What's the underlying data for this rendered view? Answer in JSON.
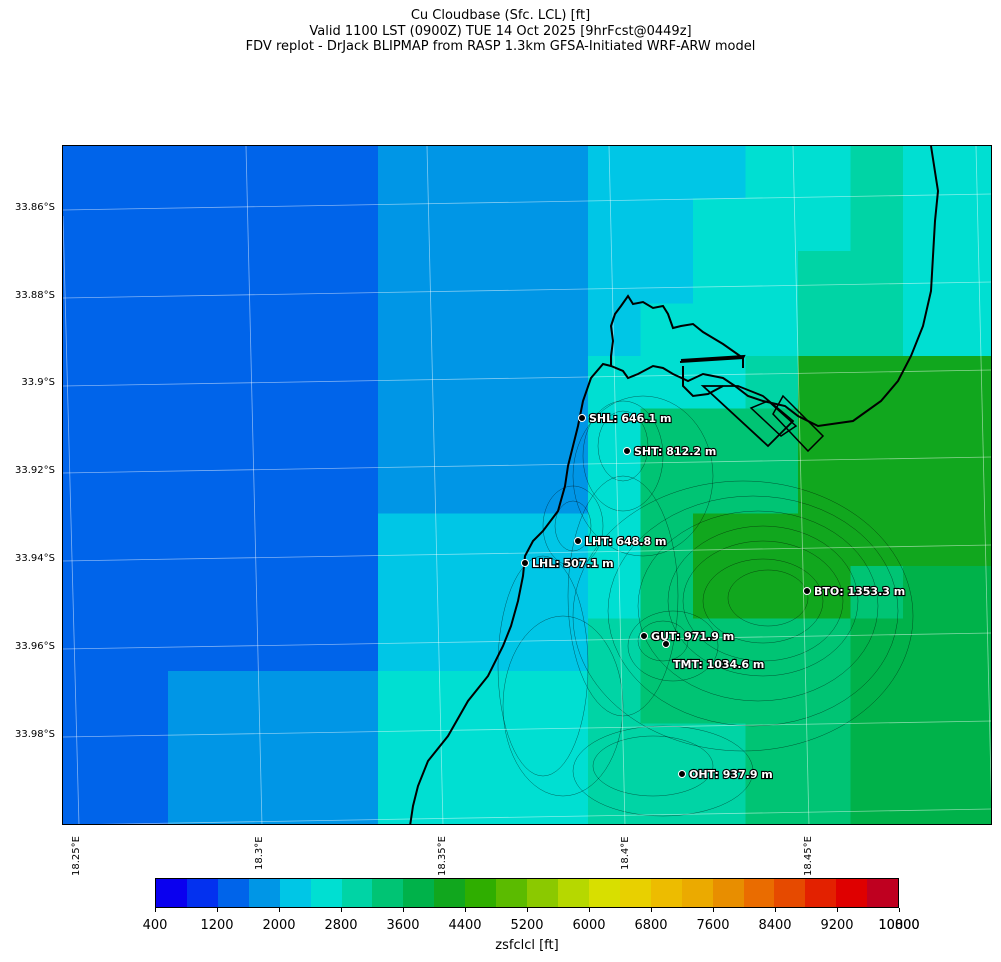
{
  "title_lines": [
    "Cu Cloudbase (Sfc. LCL) [ft]",
    "Valid 1100 LST (0900Z) TUE 14 Oct 2025 [9hrFcst@0449z]",
    "FDV replot - DrJack BLIPMAP from RASP 1.3km GFSA-Initiated WRF-ARW model"
  ],
  "lat_labels": [
    "33.86°S",
    "33.88°S",
    "33.9°S",
    "33.92°S",
    "33.94°S",
    "33.96°S",
    "33.98°S"
  ],
  "lon_labels": [
    "18.25°E",
    "18.3°E",
    "18.35°E",
    "18.4°E",
    "18.45°E"
  ],
  "stations": [
    {
      "label": "SHL: 646.1 m"
    },
    {
      "label": "SHT: 812.2 m"
    },
    {
      "label": "LHT: 648.8 m"
    },
    {
      "label": "LHL: 507.1 m"
    },
    {
      "label": "BTO: 1353.3 m"
    },
    {
      "label": "GUT: 971.9 m"
    },
    {
      "label": "TMT: 1034.6 m"
    },
    {
      "label": "OHT: 937.9 m"
    }
  ],
  "colorbar": {
    "colors": [
      "#0a00ef",
      "#0331ef",
      "#0064ea",
      "#0096e6",
      "#00c6e6",
      "#00dfd2",
      "#00d4a5",
      "#00c474",
      "#00b24a",
      "#11a71e",
      "#2fae00",
      "#5bbb00",
      "#8bc900",
      "#b6d800",
      "#d8df00",
      "#e8d000",
      "#edbc00",
      "#ebaa00",
      "#e88e00",
      "#ea6c00",
      "#e64a00",
      "#e32100",
      "#df0000",
      "#bf0020"
    ],
    "ticks": [
      "400",
      "1200",
      "2000",
      "2800",
      "3600",
      "4400",
      "5200",
      "6000",
      "6800",
      "7600",
      "8400",
      "9200",
      "10000",
      "10800"
    ],
    "label": "zsfclcl [ft]"
  }
}
